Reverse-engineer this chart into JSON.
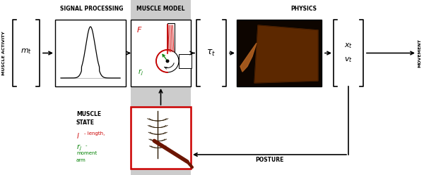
{
  "bg_color": "#ffffff",
  "gray_band_color": "#cccccc",
  "title_signal": "SIGNAL PROCESSING",
  "title_muscle": "MUSCLE MODEL",
  "title_physics": "PHYSICS",
  "label_muscle_activity": "MUSCLE ACTIVITY",
  "label_movement": "MOVEMENT",
  "label_posture": "POSTURE",
  "label_muscle_state": "MUSCLE\nSTATE",
  "red_color": "#cc0000",
  "green_color": "#008000",
  "physics_bg": "#0d0500",
  "brown_color": "#7a3800"
}
